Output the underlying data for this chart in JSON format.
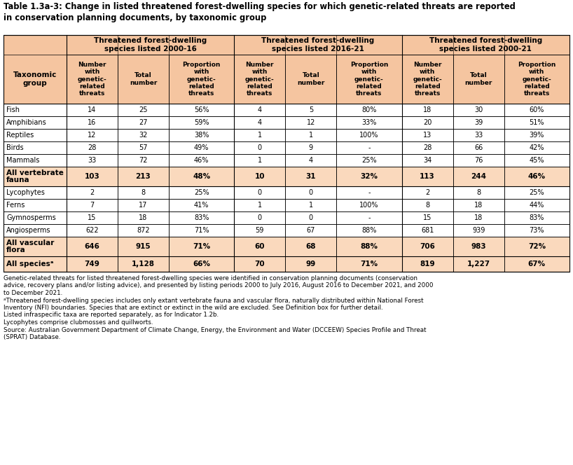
{
  "title_line1": "Table 1.3a-3: Change in listed threatened forest-dwelling species for which genetic-related threats are reported",
  "title_line2": "in conservation planning documents, by taxonomic group",
  "header_bg": "#F5C5A0",
  "bold_row_bg": "#FAD9BD",
  "white_row_bg": "#FFFFFF",
  "col_groups": [
    "Threatened forest-dwelling\nspecies listed 2000-16",
    "Threatened forest-dwelling\nspecies listed 2016-21",
    "Threatened forest-dwelling\nspecies listed 2000-21"
  ],
  "col_sub_headers": [
    "Number\nwith\ngenetic-\nrelated\nthreats",
    "Total\nnumber",
    "Proportion\nwith\ngenetic-\nrelated\nthreats"
  ],
  "row_header": "Taxonomic\ngroup",
  "rows": [
    {
      "label": "Fish",
      "bold": false,
      "data": [
        "14",
        "25",
        "56%",
        "4",
        "5",
        "80%",
        "18",
        "30",
        "60%"
      ]
    },
    {
      "label": "Amphibians",
      "bold": false,
      "data": [
        "16",
        "27",
        "59%",
        "4",
        "12",
        "33%",
        "20",
        "39",
        "51%"
      ]
    },
    {
      "label": "Reptiles",
      "bold": false,
      "data": [
        "12",
        "32",
        "38%",
        "1",
        "1",
        "100%",
        "13",
        "33",
        "39%"
      ]
    },
    {
      "label": "Birds",
      "bold": false,
      "data": [
        "28",
        "57",
        "49%",
        "0",
        "9",
        "-",
        "28",
        "66",
        "42%"
      ]
    },
    {
      "label": "Mammals",
      "bold": false,
      "data": [
        "33",
        "72",
        "46%",
        "1",
        "4",
        "25%",
        "34",
        "76",
        "45%"
      ]
    },
    {
      "label": "All vertebrate\nfauna",
      "bold": true,
      "data": [
        "103",
        "213",
        "48%",
        "10",
        "31",
        "32%",
        "113",
        "244",
        "46%"
      ]
    },
    {
      "label": "Lycophytes",
      "bold": false,
      "data": [
        "2",
        "8",
        "25%",
        "0",
        "0",
        "-",
        "2",
        "8",
        "25%"
      ]
    },
    {
      "label": "Ferns",
      "bold": false,
      "data": [
        "7",
        "17",
        "41%",
        "1",
        "1",
        "100%",
        "8",
        "18",
        "44%"
      ]
    },
    {
      "label": "Gymnosperms",
      "bold": false,
      "data": [
        "15",
        "18",
        "83%",
        "0",
        "0",
        "-",
        "15",
        "18",
        "83%"
      ]
    },
    {
      "label": "Angiosperms",
      "bold": false,
      "data": [
        "622",
        "872",
        "71%",
        "59",
        "67",
        "88%",
        "681",
        "939",
        "73%"
      ]
    },
    {
      "label": "All vascular\nflora",
      "bold": true,
      "data": [
        "646",
        "915",
        "71%",
        "60",
        "68",
        "88%",
        "706",
        "983",
        "72%"
      ]
    },
    {
      "label": "All speciesᵃ",
      "bold": true,
      "data": [
        "749",
        "1,128",
        "66%",
        "70",
        "99",
        "71%",
        "819",
        "1,227",
        "67%"
      ]
    }
  ],
  "footnotes": [
    "Genetic-related threats for listed threatened forest-dwelling species were identified in conservation planning documents (conservation",
    "advice, recovery plans and/or listing advice), and presented by listing periods 2000 to July 2016, August 2016 to December 2021, and 2000",
    "to December 2021.",
    "ᵃThreatened forest-dwelling species includes only extant vertebrate fauna and vascular flora, naturally distributed within National Forest",
    "Inventory (NFI) boundaries. Species that are extinct or extinct in the wild are excluded. See Definition box for further detail.",
    "Listed infraspecific taxa are reported separately, as for Indicator 1.2b.",
    "Lycophytes comprise clubmosses and quillworts.",
    "Source: Australian Government Department of Climate Change, Energy, the Environment and Water (DCCEEW) Species Profile and Threat",
    "(SPRAT) Database."
  ],
  "fig_width": 8.18,
  "fig_height": 6.64,
  "dpi": 100
}
